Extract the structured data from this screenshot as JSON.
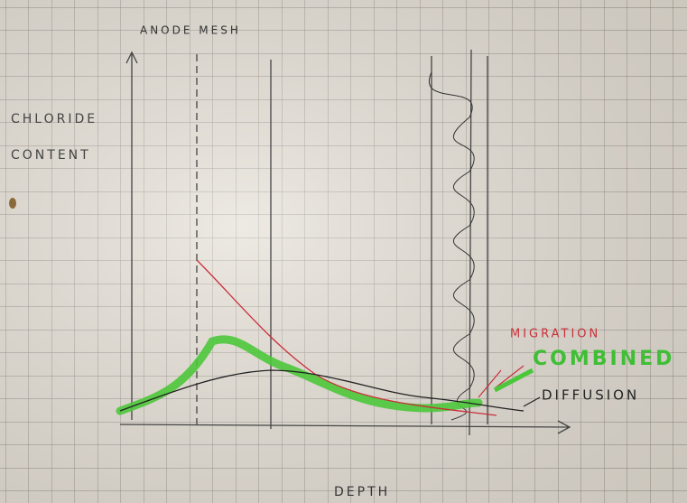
{
  "sketch": {
    "anode_label": "ANODE MESH",
    "y_axis_label": [
      "CHLORIDE",
      "CONTENT"
    ],
    "x_axis_label": "DEPTH",
    "curves": {
      "migration": "MIGRATION",
      "combined": "COMBINED",
      "diffusion": "DIFFUSION"
    }
  }
}
